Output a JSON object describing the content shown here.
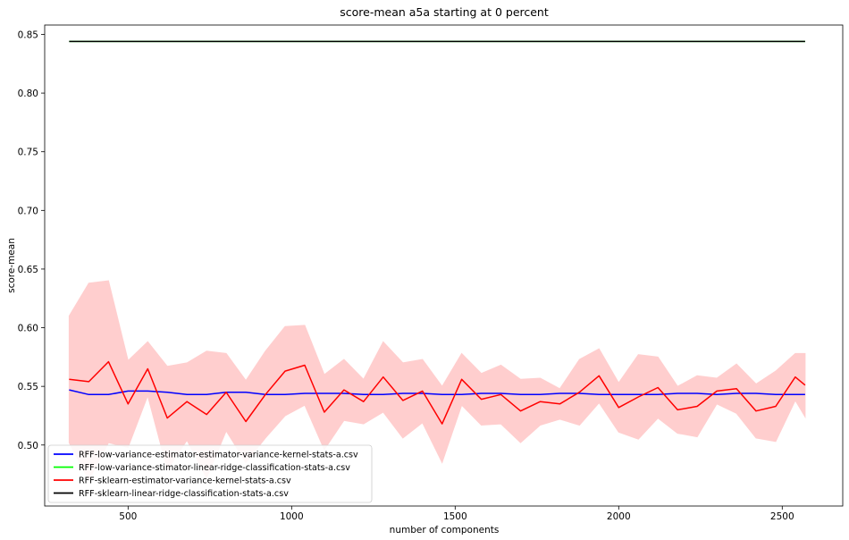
{
  "chart_data": {
    "type": "line",
    "title": "score-mean a5a starting at 0 percent",
    "xlabel": "number of components",
    "ylabel": "score-mean",
    "xlim": [
      245,
      2685
    ],
    "ylim": [
      0.448,
      0.858
    ],
    "xticks": [
      500,
      1000,
      1500,
      2000,
      2500
    ],
    "yticks": [
      0.5,
      0.55,
      0.6,
      0.65,
      0.7,
      0.75,
      0.8,
      0.85
    ],
    "xtick_labels": [
      "500",
      "1000",
      "1500",
      "2000",
      "2500"
    ],
    "ytick_labels": [
      "0.50",
      "0.55",
      "0.60",
      "0.65",
      "0.70",
      "0.75",
      "0.80",
      "0.85"
    ],
    "grid": false,
    "legend_position": "lower-left",
    "x": [
      320,
      380,
      440,
      500,
      560,
      620,
      680,
      740,
      800,
      860,
      920,
      980,
      1040,
      1100,
      1160,
      1220,
      1280,
      1340,
      1400,
      1460,
      1520,
      1580,
      1640,
      1700,
      1760,
      1820,
      1880,
      1940,
      2000,
      2060,
      2120,
      2180,
      2240,
      2300,
      2360,
      2420,
      2480,
      2540,
      2570
    ],
    "series": [
      {
        "name": "RFF-low-variance-estimator-estimator-variance-kernel-stats-a.csv",
        "color": "#0000ff",
        "values": [
          0.547,
          0.543,
          0.543,
          0.546,
          0.546,
          0.545,
          0.543,
          0.543,
          0.545,
          0.545,
          0.543,
          0.543,
          0.544,
          0.544,
          0.544,
          0.543,
          0.543,
          0.544,
          0.544,
          0.543,
          0.543,
          0.544,
          0.544,
          0.543,
          0.543,
          0.544,
          0.544,
          0.543,
          0.543,
          0.543,
          0.543,
          0.544,
          0.544,
          0.543,
          0.544,
          0.544,
          0.543,
          0.543,
          0.543
        ]
      },
      {
        "name": "RFF-low-variance-stimator-linear-ridge-classification-stats-a.csv",
        "color": "#00ff00",
        "values": [
          0.844,
          0.844,
          0.844,
          0.844,
          0.844,
          0.844,
          0.844,
          0.844,
          0.844,
          0.844,
          0.844,
          0.844,
          0.844,
          0.844,
          0.844,
          0.844,
          0.844,
          0.844,
          0.844,
          0.844,
          0.844,
          0.844,
          0.844,
          0.844,
          0.844,
          0.844,
          0.844,
          0.844,
          0.844,
          0.844,
          0.844,
          0.844,
          0.844,
          0.844,
          0.844,
          0.844,
          0.844,
          0.844,
          0.844
        ]
      },
      {
        "name": "RFF-sklearn-estimator-variance-kernel-stats-a.csv",
        "color": "#ff0000",
        "band_color": "#ffcccc",
        "values": [
          0.556,
          0.554,
          0.571,
          0.535,
          0.565,
          0.523,
          0.537,
          0.526,
          0.545,
          0.52,
          0.543,
          0.563,
          0.568,
          0.528,
          0.547,
          0.537,
          0.558,
          0.538,
          0.546,
          0.518,
          0.556,
          0.539,
          0.543,
          0.529,
          0.537,
          0.535,
          0.545,
          0.559,
          0.532,
          0.541,
          0.549,
          0.53,
          0.533,
          0.546,
          0.548,
          0.529,
          0.533,
          0.558,
          0.551
        ],
        "upper": [
          0.61,
          0.638,
          0.64,
          0.572,
          0.588,
          0.567,
          0.57,
          0.58,
          0.578,
          0.555,
          0.58,
          0.601,
          0.602,
          0.56,
          0.573,
          0.556,
          0.588,
          0.57,
          0.573,
          0.55,
          0.578,
          0.561,
          0.568,
          0.556,
          0.557,
          0.548,
          0.573,
          0.582,
          0.553,
          0.577,
          0.575,
          0.55,
          0.559,
          0.557,
          0.569,
          0.552,
          0.563,
          0.578,
          0.578
        ],
        "lower": [
          0.502,
          0.47,
          0.502,
          0.498,
          0.542,
          0.479,
          0.504,
          0.472,
          0.512,
          0.485,
          0.506,
          0.525,
          0.534,
          0.496,
          0.521,
          0.518,
          0.528,
          0.506,
          0.519,
          0.485,
          0.534,
          0.517,
          0.518,
          0.502,
          0.517,
          0.522,
          0.517,
          0.536,
          0.511,
          0.505,
          0.523,
          0.51,
          0.507,
          0.535,
          0.527,
          0.506,
          0.503,
          0.538,
          0.524
        ]
      },
      {
        "name": "RFF-sklearn-linear-ridge-classification-stats-a.csv",
        "color": "#000000",
        "values": [
          0.844,
          0.844,
          0.844,
          0.844,
          0.844,
          0.844,
          0.844,
          0.844,
          0.844,
          0.844,
          0.844,
          0.844,
          0.844,
          0.844,
          0.844,
          0.844,
          0.844,
          0.844,
          0.844,
          0.844,
          0.844,
          0.844,
          0.844,
          0.844,
          0.844,
          0.844,
          0.844,
          0.844,
          0.844,
          0.844,
          0.844,
          0.844,
          0.844,
          0.844,
          0.844,
          0.844,
          0.844,
          0.844,
          0.844
        ]
      }
    ]
  }
}
